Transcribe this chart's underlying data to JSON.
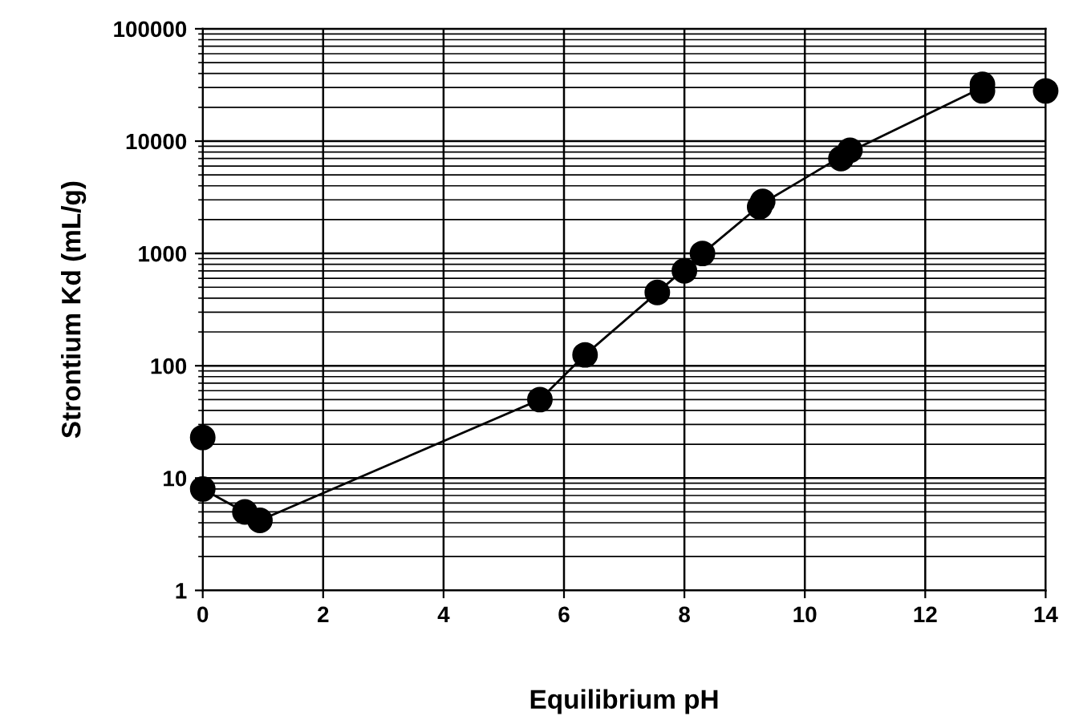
{
  "chart_data": {
    "type": "scatter",
    "xlabel": "Equilibrium pH",
    "ylabel": "Strontium Kd (mL/g)",
    "log": "y",
    "grid": true,
    "xlim": [
      0,
      14
    ],
    "xticks": [
      0,
      2,
      4,
      6,
      8,
      10,
      12,
      14
    ],
    "ylim": [
      1,
      100000
    ],
    "yticks": [
      1,
      10,
      100,
      1000,
      10000,
      100000
    ],
    "series": [
      {
        "marker": "circle",
        "color": "#000000",
        "x": [
          0,
          0,
          0.7,
          0.95,
          5.6,
          6.35,
          7.55,
          8.0,
          8.3,
          9.25,
          9.3,
          10.6,
          10.75,
          12.95,
          12.95,
          14
        ],
        "values": [
          23,
          8,
          5,
          4.2,
          50,
          125,
          450,
          700,
          1000,
          2600,
          2900,
          7000,
          8300,
          28000,
          32000,
          28000
        ]
      },
      {
        "type": "line",
        "color": "#000000",
        "marker": "none",
        "x": [
          0,
          0.95,
          5.6,
          6.35,
          8.3,
          9.3,
          10.7,
          12.95
        ],
        "values": [
          8,
          4.2,
          50,
          125,
          1000,
          2800,
          7800,
          30000
        ]
      }
    ]
  }
}
